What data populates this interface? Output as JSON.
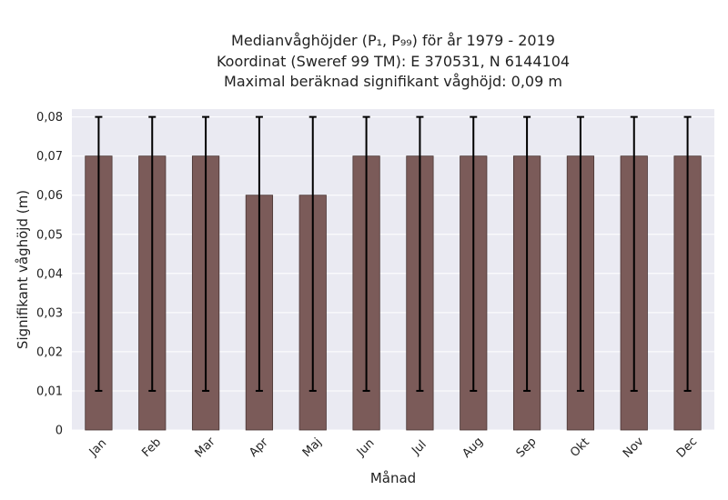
{
  "chart_data": {
    "type": "bar",
    "title_lines": [
      "Medianvåghöjder (P₁, P₉₉) för år 1979 - 2019",
      "Koordinat (Sweref 99 TM): E 370531, N 6144104",
      "Maximal beräknad signifikant våghöjd: 0,09 m"
    ],
    "xlabel": "Månad",
    "ylabel": "Signifikant våghöjd (m)",
    "categories": [
      "Jan",
      "Feb",
      "Mar",
      "Apr",
      "Maj",
      "Jun",
      "Jul",
      "Aug",
      "Sep",
      "Okt",
      "Nov",
      "Dec"
    ],
    "values": [
      0.07,
      0.07,
      0.07,
      0.06,
      0.06,
      0.07,
      0.07,
      0.07,
      0.07,
      0.07,
      0.07,
      0.07
    ],
    "error_low": [
      0.01,
      0.01,
      0.01,
      0.01,
      0.01,
      0.01,
      0.01,
      0.01,
      0.01,
      0.01,
      0.01,
      0.01
    ],
    "error_high": [
      0.08,
      0.08,
      0.08,
      0.08,
      0.08,
      0.08,
      0.08,
      0.08,
      0.08,
      0.08,
      0.08,
      0.08
    ],
    "ylim": [
      0,
      0.082
    ],
    "yticks": [
      0,
      0.01,
      0.02,
      0.03,
      0.04,
      0.05,
      0.06,
      0.07,
      0.08
    ],
    "ytick_labels": [
      "0",
      "0,01",
      "0,02",
      "0,03",
      "0,04",
      "0,05",
      "0,06",
      "0,07",
      "0,08"
    ],
    "grid": true,
    "colors": {
      "bar": "#7b5b59",
      "bar_edge": "#4a3634",
      "error": "#000000",
      "plot_bg": "#eaeaf2",
      "grid": "#ffffff"
    }
  }
}
